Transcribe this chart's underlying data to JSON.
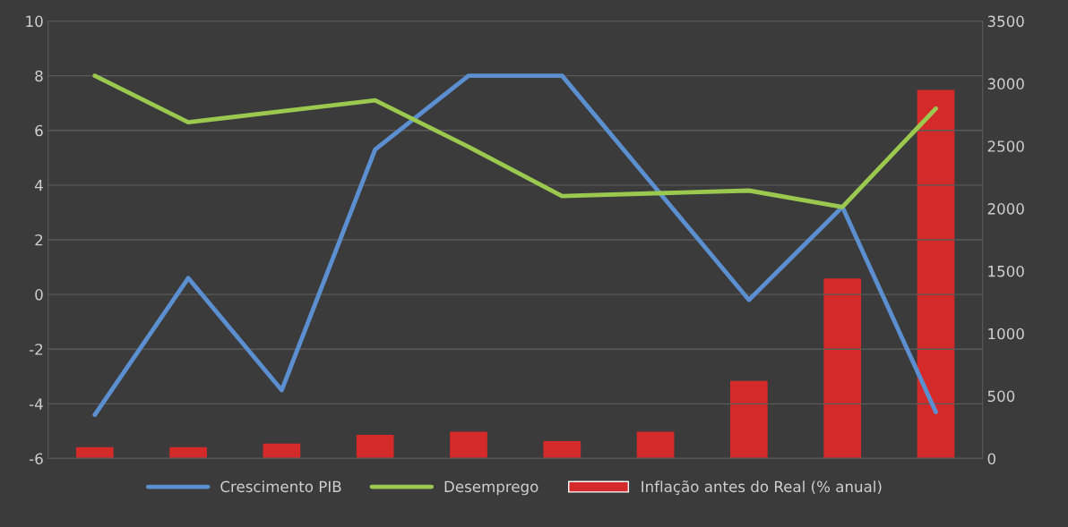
{
  "chart_data": {
    "type": "line",
    "categories": [
      null,
      null,
      null,
      null,
      null,
      null,
      null,
      null,
      null,
      null
    ],
    "series": [
      {
        "name": "Crescimento PIB",
        "color": "#5b8fd0",
        "values": [
          -4.4,
          0.6,
          -3.5,
          5.3,
          8.0,
          8.0,
          3.9,
          -0.2,
          3.2,
          -4.3
        ]
      },
      {
        "name": "Desemprego",
        "color": "#9bc84e",
        "values": [
          8.0,
          6.3,
          6.7,
          7.1,
          5.4,
          3.6,
          3.7,
          3.8,
          3.2,
          6.8
        ]
      },
      {
        "name": "Inflação antes do Real (% anual)",
        "type": "bar",
        "axis": "y2",
        "color": "#d42a2a",
        "values": [
          90,
          90,
          120,
          190,
          215,
          140,
          215,
          620,
          1440,
          2950
        ]
      }
    ],
    "ylim": [
      -6,
      10
    ],
    "yticks": [
      -6,
      -4,
      -2,
      0,
      2,
      4,
      6,
      8,
      10
    ],
    "y2lim": [
      0,
      3500
    ],
    "y2ticks": [
      0,
      500,
      1000,
      1500,
      2000,
      2500,
      3000,
      3500
    ],
    "grid": "y",
    "legend": "bottom",
    "marker": "none",
    "line_style": "solid"
  }
}
